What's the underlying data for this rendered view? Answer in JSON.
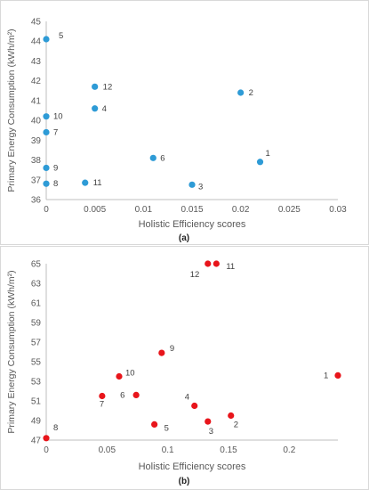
{
  "chart_data": [
    {
      "type": "scatter",
      "panel_label": "(a)",
      "title": "",
      "xlabel": "Holistic Efficiency scores",
      "ylabel": "Primary Energy Consumption (kWh/m²)",
      "xlim": [
        0,
        0.03
      ],
      "ylim": [
        36,
        45
      ],
      "xticks": [
        "0",
        "0.005",
        "0.01",
        "0.015",
        "0.02",
        "0.025",
        "0.03"
      ],
      "yticks": [
        "36",
        "37",
        "38",
        "39",
        "40",
        "41",
        "42",
        "43",
        "44",
        "45"
      ],
      "grid": "none",
      "marker_color": "#2E9BD6",
      "points": [
        {
          "label": "1",
          "x": 0.022,
          "y": 37.9
        },
        {
          "label": "2",
          "x": 0.02,
          "y": 41.4
        },
        {
          "label": "3",
          "x": 0.015,
          "y": 36.75
        },
        {
          "label": "4",
          "x": 0.005,
          "y": 40.6
        },
        {
          "label": "5",
          "x": 0.0,
          "y": 44.1
        },
        {
          "label": "6",
          "x": 0.011,
          "y": 38.1
        },
        {
          "label": "7",
          "x": 0.0,
          "y": 39.4
        },
        {
          "label": "8",
          "x": 0.0,
          "y": 36.8
        },
        {
          "label": "9",
          "x": 0.0,
          "y": 37.6
        },
        {
          "label": "10",
          "x": 0.0,
          "y": 40.2
        },
        {
          "label": "11",
          "x": 0.004,
          "y": 36.85
        },
        {
          "label": "12",
          "x": 0.005,
          "y": 41.7
        }
      ]
    },
    {
      "type": "scatter",
      "panel_label": "(b)",
      "title": "",
      "xlabel": "Holistic Efficiency scores",
      "ylabel": "Primary Energy Consumption (kWh/m²)",
      "xlim": [
        0,
        0.24
      ],
      "ylim": [
        47,
        65
      ],
      "xticks": [
        "0",
        "0.05",
        "0.1",
        "0.15",
        "0.2"
      ],
      "yticks": [
        "47",
        "49",
        "51",
        "53",
        "55",
        "57",
        "59",
        "61",
        "63",
        "65"
      ],
      "grid": "none",
      "marker_color": "#E8151B",
      "points": [
        {
          "label": "1",
          "x": 0.24,
          "y": 53.6
        },
        {
          "label": "2",
          "x": 0.152,
          "y": 49.5
        },
        {
          "label": "3",
          "x": 0.133,
          "y": 48.9
        },
        {
          "label": "4",
          "x": 0.122,
          "y": 50.5
        },
        {
          "label": "5",
          "x": 0.089,
          "y": 48.6
        },
        {
          "label": "6",
          "x": 0.074,
          "y": 51.6
        },
        {
          "label": "7",
          "x": 0.046,
          "y": 51.5
        },
        {
          "label": "8",
          "x": 0.0,
          "y": 47.2
        },
        {
          "label": "9",
          "x": 0.095,
          "y": 55.9
        },
        {
          "label": "10",
          "x": 0.06,
          "y": 53.5
        },
        {
          "label": "11",
          "x": 0.14,
          "y": 65.0
        },
        {
          "label": "12",
          "x": 0.133,
          "y": 65.0
        }
      ]
    }
  ]
}
